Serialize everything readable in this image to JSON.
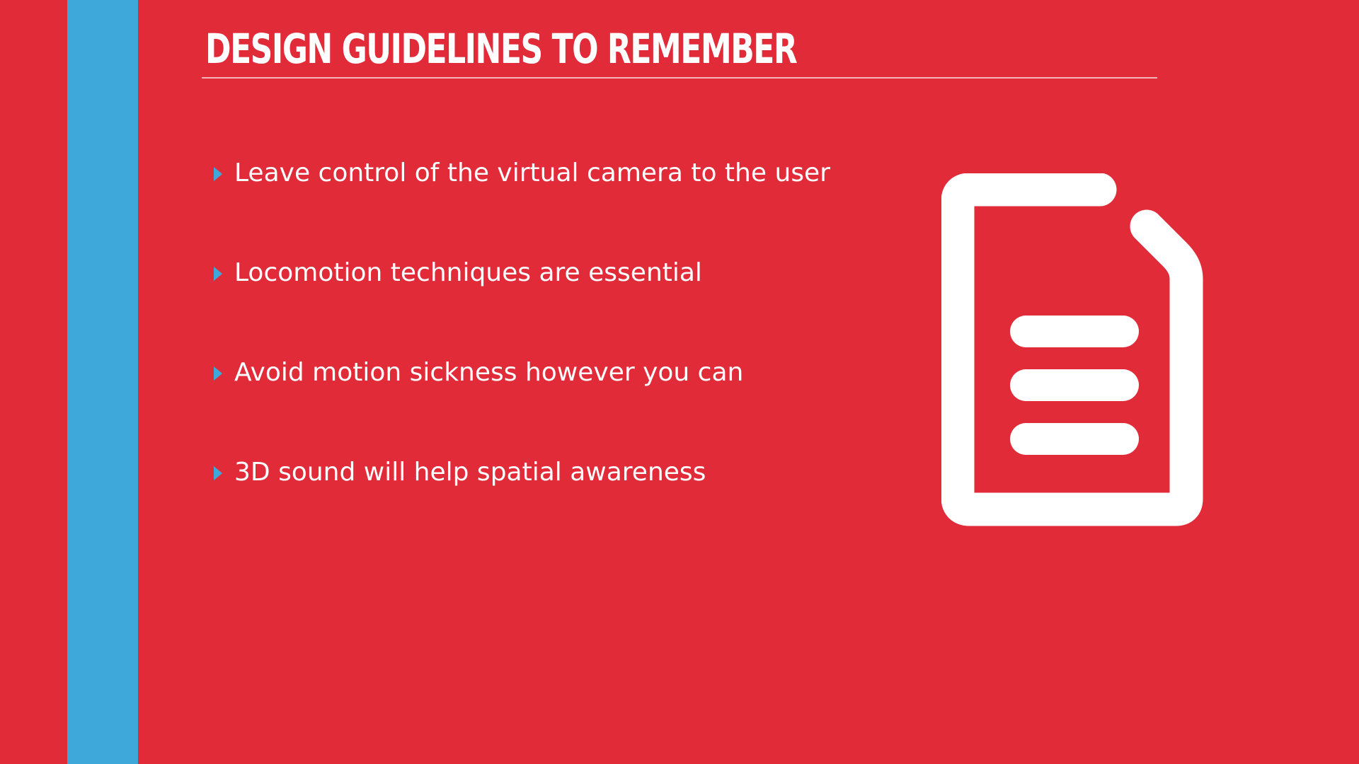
{
  "slide": {
    "title": "DESIGN GUIDELINES TO REMEMBER",
    "bullets": [
      "Leave control of the virtual camera to the user",
      "Locomotion techniques are essential",
      "Avoid motion sickness however you can",
      "3D sound will help spatial awareness"
    ],
    "icon": "document-icon",
    "colors": {
      "background": "#e12b39",
      "accent": "#3fa8db",
      "text": "#ffffff"
    }
  }
}
